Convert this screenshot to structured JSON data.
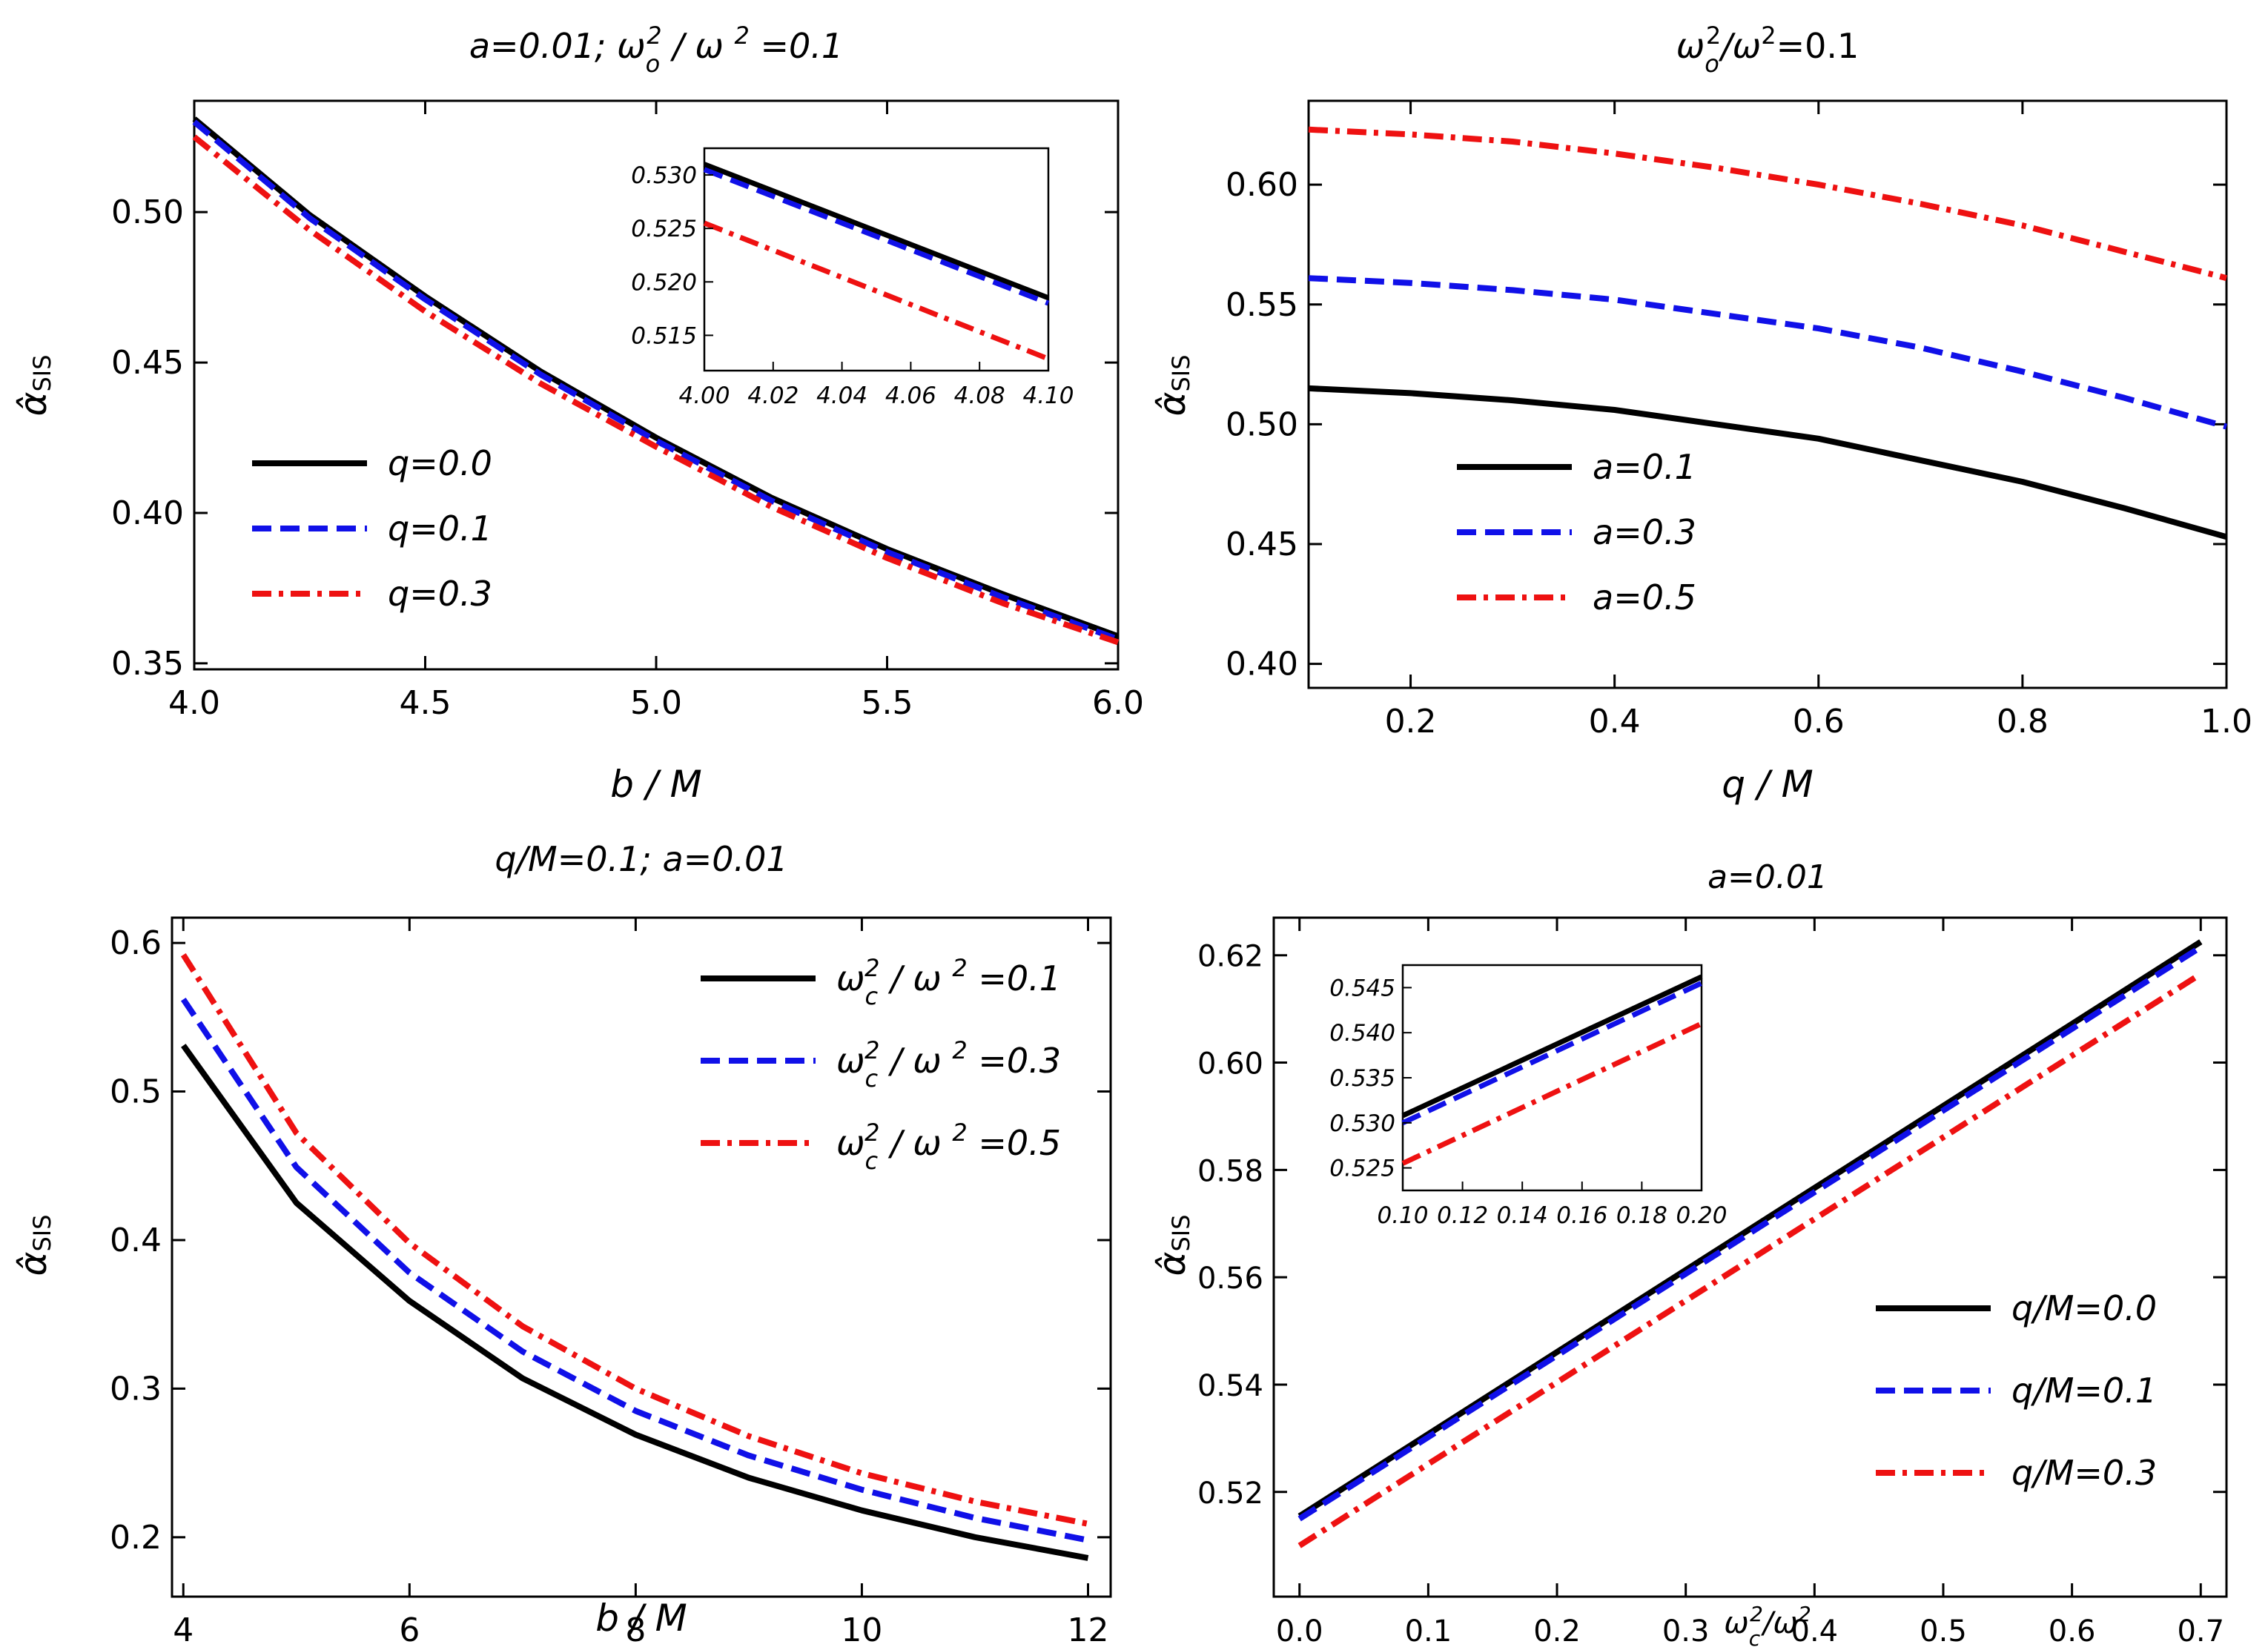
{
  "chart_data": [
    {
      "type": "line",
      "title": "a=0.01;    ω_o^2/ω^2=0.1",
      "title_parts": {
        "a": "a=0.01;",
        "w_label": "ω",
        "w_sub": "o",
        "w_sup": "2",
        "w_sep": " / ω ",
        "w_sup2": "2",
        "w_val": " =0.1"
      },
      "xlabel": "b / M",
      "ylabel": "α̂",
      "ylabel_sub": "SIS",
      "xlim": [
        4.0,
        6.0
      ],
      "ylim": [
        0.348,
        0.537
      ],
      "xticks": [
        4.0,
        4.5,
        5.0,
        5.5,
        6.0
      ],
      "xtick_labels": [
        "4.0",
        "4.5",
        "5.0",
        "5.5",
        "6.0"
      ],
      "yticks": [
        0.35,
        0.4,
        0.45,
        0.5
      ],
      "ytick_labels": [
        "0.35",
        "0.40",
        "0.45",
        "0.50"
      ],
      "legend_position": "middle-left",
      "series": [
        {
          "name": "q=0.0",
          "color": "#000000",
          "style": "solid",
          "x": [
            4.0,
            4.25,
            4.5,
            4.75,
            5.0,
            5.25,
            5.5,
            5.75,
            6.0
          ],
          "y": [
            0.531,
            0.499,
            0.472,
            0.447,
            0.425,
            0.405,
            0.388,
            0.373,
            0.359
          ]
        },
        {
          "name": "q=0.1",
          "color": "#1010e8",
          "style": "dashed",
          "x": [
            4.0,
            4.25,
            4.5,
            4.75,
            5.0,
            5.25,
            5.5,
            5.75,
            6.0
          ],
          "y": [
            0.53,
            0.498,
            0.471,
            0.446,
            0.424,
            0.404,
            0.387,
            0.372,
            0.358
          ]
        },
        {
          "name": "q=0.3",
          "color": "#ee1111",
          "style": "dashdot",
          "x": [
            4.0,
            4.25,
            4.5,
            4.75,
            5.0,
            5.25,
            5.5,
            5.75,
            6.0
          ],
          "y": [
            0.525,
            0.494,
            0.467,
            0.443,
            0.422,
            0.402,
            0.385,
            0.37,
            0.357
          ]
        }
      ],
      "inset": {
        "xlim": [
          4.0,
          4.1
        ],
        "ylim": [
          0.5117,
          0.5325
        ],
        "xticks": [
          4.0,
          4.02,
          4.04,
          4.06,
          4.08,
          4.1
        ],
        "xtick_labels": [
          "4.00",
          "4.02",
          "4.04",
          "4.06",
          "4.08",
          "4.10"
        ],
        "yticks": [
          0.515,
          0.52,
          0.525,
          0.53
        ],
        "ytick_labels": [
          "0.515",
          "0.520",
          "0.525",
          "0.530"
        ],
        "series": [
          {
            "name": "q=0.0",
            "x": [
              4.0,
              4.1
            ],
            "y": [
              0.531,
              0.5185
            ]
          },
          {
            "name": "q=0.1",
            "x": [
              4.0,
              4.1
            ],
            "y": [
              0.5305,
              0.518
            ]
          },
          {
            "name": "q=0.3",
            "x": [
              4.0,
              4.1
            ],
            "y": [
              0.5255,
              0.5128
            ]
          }
        ]
      }
    },
    {
      "type": "line",
      "title": "ω_o^2/ω^2=0.1",
      "title_parts": {
        "w_label": "ω",
        "w_sub": "o",
        "w_sup": "2",
        "w_sep": "/ω",
        "w_sup2": "2",
        "w_val": "=0.1"
      },
      "xlabel": "q / M",
      "ylabel": "α̂",
      "ylabel_sub": "SIS",
      "xlim": [
        0.1,
        1.0
      ],
      "ylim": [
        0.39,
        0.635
      ],
      "xticks": [
        0.2,
        0.4,
        0.6,
        0.8,
        1.0
      ],
      "xtick_labels": [
        "0.2",
        "0.4",
        "0.6",
        "0.8",
        "1.0"
      ],
      "yticks": [
        0.4,
        0.45,
        0.5,
        0.55,
        0.6
      ],
      "ytick_labels": [
        "0.40",
        "0.45",
        "0.50",
        "0.55",
        "0.60"
      ],
      "legend_position": "bottom-left",
      "series": [
        {
          "name": "a=0.1",
          "color": "#000000",
          "style": "solid",
          "x": [
            0.1,
            0.2,
            0.3,
            0.4,
            0.5,
            0.6,
            0.7,
            0.8,
            0.9,
            1.0
          ],
          "y": [
            0.515,
            0.513,
            0.51,
            0.506,
            0.5,
            0.494,
            0.485,
            0.476,
            0.465,
            0.453
          ]
        },
        {
          "name": "a=0.3",
          "color": "#1010e8",
          "style": "dashed",
          "x": [
            0.1,
            0.2,
            0.3,
            0.4,
            0.5,
            0.6,
            0.7,
            0.8,
            0.9,
            1.0
          ],
          "y": [
            0.561,
            0.559,
            0.556,
            0.552,
            0.546,
            0.54,
            0.532,
            0.522,
            0.511,
            0.499
          ]
        },
        {
          "name": "a=0.5",
          "color": "#ee1111",
          "style": "dashdot",
          "x": [
            0.1,
            0.2,
            0.3,
            0.4,
            0.5,
            0.6,
            0.7,
            0.8,
            0.9,
            1.0
          ],
          "y": [
            0.623,
            0.621,
            0.618,
            0.613,
            0.607,
            0.6,
            0.592,
            0.583,
            0.572,
            0.561
          ]
        }
      ]
    },
    {
      "type": "line",
      "title": "q/M=0.1;    a=0.01",
      "title_parts": {
        "a": "q/M=0.1;",
        "b": "a=0.01"
      },
      "xlabel": "b / M",
      "ylabel": "α̂",
      "ylabel_sub": "SIS",
      "xlim": [
        3.9,
        12.2
      ],
      "ylim": [
        0.16,
        0.617
      ],
      "xticks": [
        4,
        6,
        8,
        10,
        12
      ],
      "xtick_labels": [
        "4",
        "6",
        "8",
        "10",
        "12"
      ],
      "yticks": [
        0.2,
        0.3,
        0.4,
        0.5,
        0.6
      ],
      "ytick_labels": [
        "0.2",
        "0.3",
        "0.4",
        "0.5",
        "0.6"
      ],
      "legend_position": "top-right",
      "series": [
        {
          "name": "ω_c^2/ω^2=0.1",
          "label_parts": {
            "w": "ω",
            "sub": "c",
            "sup": "2",
            "rest": " / ω ",
            "sup2": "2",
            "val": " =0.1"
          },
          "color": "#000000",
          "style": "solid",
          "x": [
            4,
            5,
            6,
            7,
            8,
            9,
            10,
            11,
            12
          ],
          "y": [
            0.531,
            0.425,
            0.359,
            0.307,
            0.269,
            0.24,
            0.218,
            0.2,
            0.186
          ]
        },
        {
          "name": "ω_c^2/ω^2=0.3",
          "label_parts": {
            "w": "ω",
            "sub": "c",
            "sup": "2",
            "rest": " / ω ",
            "sup2": "2",
            "val": " =0.3"
          },
          "color": "#1010e8",
          "style": "dashed",
          "x": [
            4,
            5,
            6,
            7,
            8,
            9,
            10,
            11,
            12
          ],
          "y": [
            0.562,
            0.449,
            0.378,
            0.325,
            0.285,
            0.255,
            0.232,
            0.213,
            0.198
          ]
        },
        {
          "name": "ω_c^2/ω^2=0.5",
          "label_parts": {
            "w": "ω",
            "sub": "c",
            "sup": "2",
            "rest": " / ω ",
            "sup2": "2",
            "val": " =0.5"
          },
          "color": "#ee1111",
          "style": "dashdot",
          "x": [
            4,
            5,
            6,
            7,
            8,
            9,
            10,
            11,
            12
          ],
          "y": [
            0.592,
            0.472,
            0.398,
            0.342,
            0.3,
            0.268,
            0.243,
            0.224,
            0.209
          ]
        }
      ]
    },
    {
      "type": "line",
      "title": "a=0.01",
      "xlabel": "ω_c^2/ω^2",
      "xlabel_parts": {
        "w": "ω",
        "sub": "c",
        "sup": "2",
        "rest": "/ω",
        "sup2": "2"
      },
      "ylabel": "α̂",
      "ylabel_sub": "SIS",
      "xlim": [
        -0.02,
        0.72
      ],
      "ylim": [
        0.5005,
        0.627
      ],
      "xticks": [
        0.0,
        0.1,
        0.2,
        0.3,
        0.4,
        0.5,
        0.6,
        0.7
      ],
      "xtick_labels": [
        "0.0",
        "0.1",
        "0.2",
        "0.3",
        "0.4",
        "0.5",
        "0.6",
        "0.7"
      ],
      "yticks": [
        0.52,
        0.54,
        0.56,
        0.58,
        0.6,
        0.62
      ],
      "ytick_labels": [
        "0.52",
        "0.54",
        "0.56",
        "0.58",
        "0.60",
        "0.62"
      ],
      "legend_position": "bottom-right",
      "series": [
        {
          "name": "q/M=0.0",
          "color": "#000000",
          "style": "solid",
          "x": [
            0.0,
            0.7
          ],
          "y": [
            0.5155,
            0.6225
          ]
        },
        {
          "name": "q/M=0.1",
          "color": "#1010e8",
          "style": "dashed",
          "x": [
            0.0,
            0.7
          ],
          "y": [
            0.515,
            0.6215
          ]
        },
        {
          "name": "q/M=0.3",
          "color": "#ee1111",
          "style": "dashdot",
          "x": [
            0.0,
            0.7
          ],
          "y": [
            0.51,
            0.6165
          ]
        }
      ],
      "inset": {
        "xlim": [
          0.1,
          0.2
        ],
        "ylim": [
          0.5225,
          0.5475
        ],
        "xticks": [
          0.1,
          0.12,
          0.14,
          0.16,
          0.18,
          0.2
        ],
        "xtick_labels": [
          "0.10",
          "0.12",
          "0.14",
          "0.16",
          "0.18",
          "0.20"
        ],
        "yticks": [
          0.525,
          0.53,
          0.535,
          0.54,
          0.545
        ],
        "ytick_labels": [
          "0.525",
          "0.530",
          "0.535",
          "0.540",
          "0.545"
        ],
        "series": [
          {
            "name": "q/M=0.0",
            "x": [
              0.1,
              0.2
            ],
            "y": [
              0.5308,
              0.5462
            ]
          },
          {
            "name": "q/M=0.1",
            "x": [
              0.1,
              0.2
            ],
            "y": [
              0.53,
              0.5455
            ]
          },
          {
            "name": "q/M=0.3",
            "x": [
              0.1,
              0.2
            ],
            "y": [
              0.5255,
              0.541
            ]
          }
        ]
      }
    }
  ]
}
